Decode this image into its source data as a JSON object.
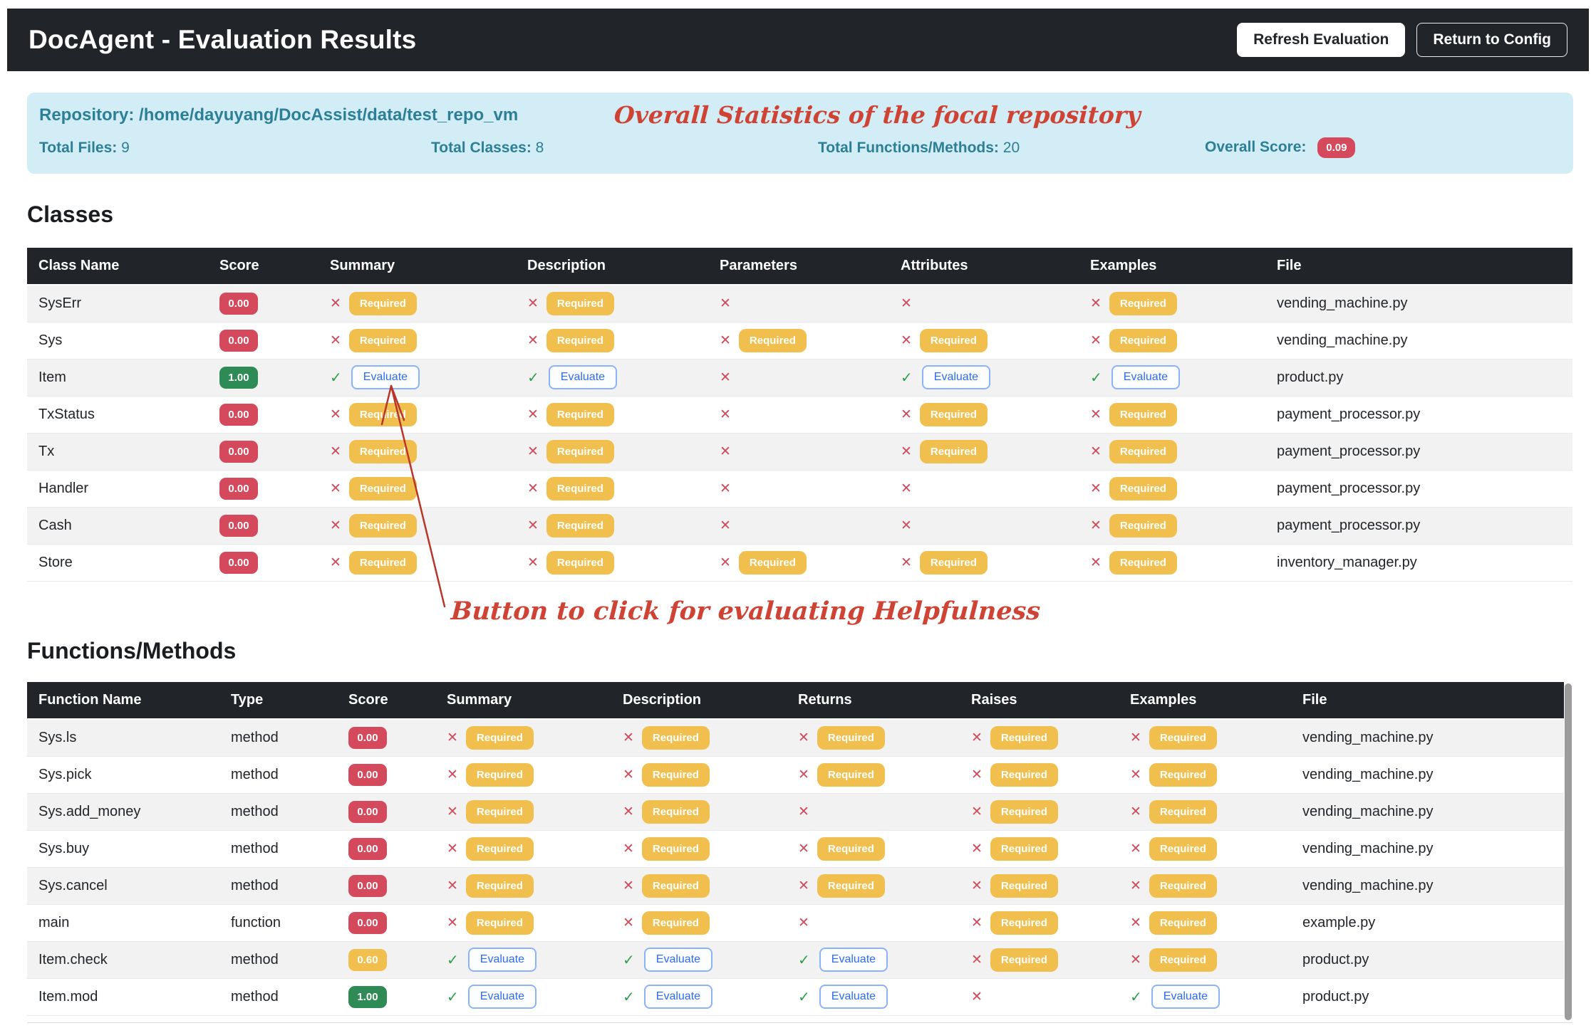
{
  "navbar": {
    "title": "DocAgent - Evaluation Results",
    "refresh_button": "Refresh Evaluation",
    "return_button": "Return to Config"
  },
  "stats_panel": {
    "repository_label": "Repository:",
    "repository_path": "/home/dayuyang/DocAssist/data/test_repo_vm",
    "total_files_label": "Total Files:",
    "total_files_value": "9",
    "total_classes_label": "Total Classes:",
    "total_classes_value": "8",
    "total_functions_label": "Total Functions/Methods:",
    "total_functions_value": "20",
    "overall_score_label": "Overall Score:",
    "overall_score_value": "0.09"
  },
  "annotations": {
    "stats_note": "Overall Statistics of the focal repository",
    "evaluate_note": "Button to click for evaluating Helpfulness"
  },
  "labels": {
    "required": "Required",
    "evaluate": "Evaluate",
    "cross_icon": "✕",
    "check_icon": "✓"
  },
  "classes_section": {
    "title": "Classes",
    "columns": [
      "Class Name",
      "Score",
      "Summary",
      "Description",
      "Parameters",
      "Attributes",
      "Examples",
      "File"
    ],
    "status_keys": [
      "summary",
      "description",
      "parameters",
      "attributes",
      "examples"
    ],
    "rows": [
      {
        "name": "SysErr",
        "score": "0.00",
        "score_level": "danger",
        "summary": "required",
        "description": "required",
        "parameters": "cross",
        "attributes": "cross",
        "examples": "required",
        "file": "vending_machine.py"
      },
      {
        "name": "Sys",
        "score": "0.00",
        "score_level": "danger",
        "summary": "required",
        "description": "required",
        "parameters": "required",
        "attributes": "required",
        "examples": "required",
        "file": "vending_machine.py"
      },
      {
        "name": "Item",
        "score": "1.00",
        "score_level": "success",
        "summary": "evaluate",
        "description": "evaluate",
        "parameters": "cross",
        "attributes": "evaluate",
        "examples": "evaluate",
        "file": "product.py"
      },
      {
        "name": "TxStatus",
        "score": "0.00",
        "score_level": "danger",
        "summary": "required",
        "description": "required",
        "parameters": "cross",
        "attributes": "required",
        "examples": "required",
        "file": "payment_processor.py"
      },
      {
        "name": "Tx",
        "score": "0.00",
        "score_level": "danger",
        "summary": "required",
        "description": "required",
        "parameters": "cross",
        "attributes": "required",
        "examples": "required",
        "file": "payment_processor.py"
      },
      {
        "name": "Handler",
        "score": "0.00",
        "score_level": "danger",
        "summary": "required",
        "description": "required",
        "parameters": "cross",
        "attributes": "cross",
        "examples": "required",
        "file": "payment_processor.py"
      },
      {
        "name": "Cash",
        "score": "0.00",
        "score_level": "danger",
        "summary": "required",
        "description": "required",
        "parameters": "cross",
        "attributes": "cross",
        "examples": "required",
        "file": "payment_processor.py"
      },
      {
        "name": "Store",
        "score": "0.00",
        "score_level": "danger",
        "summary": "required",
        "description": "required",
        "parameters": "required",
        "attributes": "required",
        "examples": "required",
        "file": "inventory_manager.py"
      }
    ]
  },
  "functions_section": {
    "title": "Functions/Methods",
    "columns": [
      "Function Name",
      "Type",
      "Score",
      "Summary",
      "Description",
      "Returns",
      "Raises",
      "Examples",
      "File"
    ],
    "status_keys": [
      "summary",
      "description",
      "returns",
      "raises",
      "examples"
    ],
    "rows": [
      {
        "name": "Sys.ls",
        "type": "method",
        "score": "0.00",
        "score_level": "danger",
        "summary": "required",
        "description": "required",
        "returns": "required",
        "raises": "required",
        "examples": "required",
        "file": "vending_machine.py"
      },
      {
        "name": "Sys.pick",
        "type": "method",
        "score": "0.00",
        "score_level": "danger",
        "summary": "required",
        "description": "required",
        "returns": "required",
        "raises": "required",
        "examples": "required",
        "file": "vending_machine.py"
      },
      {
        "name": "Sys.add_money",
        "type": "method",
        "score": "0.00",
        "score_level": "danger",
        "summary": "required",
        "description": "required",
        "returns": "cross",
        "raises": "required",
        "examples": "required",
        "file": "vending_machine.py"
      },
      {
        "name": "Sys.buy",
        "type": "method",
        "score": "0.00",
        "score_level": "danger",
        "summary": "required",
        "description": "required",
        "returns": "required",
        "raises": "required",
        "examples": "required",
        "file": "vending_machine.py"
      },
      {
        "name": "Sys.cancel",
        "type": "method",
        "score": "0.00",
        "score_level": "danger",
        "summary": "required",
        "description": "required",
        "returns": "required",
        "raises": "required",
        "examples": "required",
        "file": "vending_machine.py"
      },
      {
        "name": "main",
        "type": "function",
        "score": "0.00",
        "score_level": "danger",
        "summary": "required",
        "description": "required",
        "returns": "cross",
        "raises": "required",
        "examples": "required",
        "file": "example.py"
      },
      {
        "name": "Item.check",
        "type": "method",
        "score": "0.60",
        "score_level": "warning",
        "summary": "evaluate",
        "description": "evaluate",
        "returns": "evaluate",
        "raises": "required",
        "examples": "required",
        "file": "product.py"
      },
      {
        "name": "Item.mod",
        "type": "method",
        "score": "1.00",
        "score_level": "success",
        "summary": "evaluate",
        "description": "evaluate",
        "returns": "evaluate",
        "raises": "cross",
        "examples": "evaluate",
        "file": "product.py"
      }
    ]
  },
  "colors": {
    "danger": "#d4495c",
    "warning": "#f0bf4d",
    "success": "#2f8b56",
    "info_bg": "#d2edf6",
    "info_text": "#2c7f96",
    "annotation": "#cf4335"
  }
}
